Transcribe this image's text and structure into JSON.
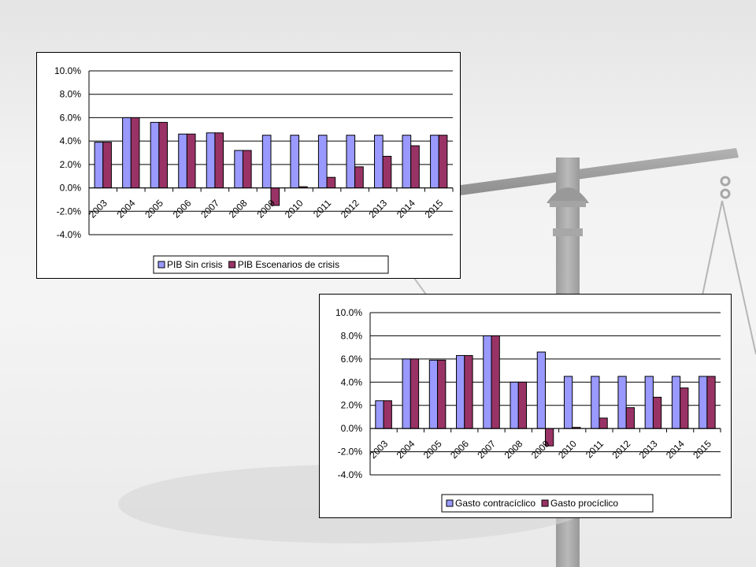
{
  "colors": {
    "series1": "#9999ff",
    "series2": "#993366",
    "gridline": "#000000",
    "background": "#ffffff"
  },
  "chart_data": [
    {
      "type": "bar",
      "title": "",
      "xlabel": "",
      "ylabel": "",
      "ylim": [
        -0.04,
        0.1
      ],
      "yticks": [
        "10.0%",
        "8.0%",
        "6.0%",
        "4.0%",
        "2.0%",
        "0.0%",
        "-2.0%",
        "-4.0%"
      ],
      "grid": true,
      "legend_position": "bottom",
      "categories": [
        "2003",
        "2004",
        "2005",
        "2006",
        "2007",
        "2008",
        "2009",
        "2010",
        "2011",
        "2012",
        "2013",
        "2014",
        "2015"
      ],
      "series": [
        {
          "name": "PIB Sin crisis",
          "values": [
            0.039,
            0.06,
            0.056,
            0.046,
            0.047,
            0.032,
            0.045,
            0.045,
            0.045,
            0.045,
            0.045,
            0.045,
            0.045
          ]
        },
        {
          "name": "PIB Escenarios de crisis",
          "values": [
            0.039,
            0.06,
            0.056,
            0.046,
            0.047,
            0.032,
            -0.015,
            0.001,
            0.009,
            0.018,
            0.027,
            0.036,
            0.045
          ]
        }
      ]
    },
    {
      "type": "bar",
      "title": "",
      "xlabel": "",
      "ylabel": "",
      "ylim": [
        -0.04,
        0.1
      ],
      "yticks": [
        "10.0%",
        "8.0%",
        "6.0%",
        "4.0%",
        "2.0%",
        "0.0%",
        "-2.0%",
        "-4.0%"
      ],
      "grid": true,
      "legend_position": "bottom",
      "categories": [
        "2003",
        "2004",
        "2005",
        "2006",
        "2007",
        "2008",
        "2009",
        "2010",
        "2011",
        "2012",
        "2013",
        "2014",
        "2015"
      ],
      "series": [
        {
          "name": "Gasto contracíclico",
          "values": [
            0.024,
            0.06,
            0.059,
            0.063,
            0.08,
            0.04,
            0.066,
            0.045,
            0.045,
            0.045,
            0.045,
            0.045,
            0.045
          ]
        },
        {
          "name": "Gasto procíclico",
          "values": [
            0.024,
            0.06,
            0.059,
            0.063,
            0.08,
            0.04,
            -0.015,
            0.001,
            0.009,
            0.018,
            0.027,
            0.035,
            0.045
          ]
        }
      ]
    }
  ]
}
